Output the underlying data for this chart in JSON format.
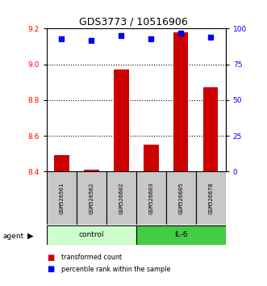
{
  "title": "GDS3773 / 10516906",
  "samples": [
    "GSM526561",
    "GSM526562",
    "GSM526602",
    "GSM526603",
    "GSM526605",
    "GSM526678"
  ],
  "transformed_counts": [
    8.49,
    8.41,
    8.97,
    8.55,
    9.18,
    8.87
  ],
  "percentile_ranks": [
    93,
    92,
    95,
    93,
    97,
    94
  ],
  "ylim_left": [
    8.4,
    9.2
  ],
  "ylim_right": [
    0,
    100
  ],
  "yticks_left": [
    8.4,
    8.6,
    8.8,
    9.0,
    9.2
  ],
  "yticks_right": [
    0,
    25,
    50,
    75,
    100
  ],
  "bar_color": "#cc0000",
  "dot_color": "#0000ee",
  "bar_width": 0.5,
  "bg_color": "#ffffff",
  "sample_bg_color": "#c8c8c8",
  "control_color": "#ccffcc",
  "il6_color": "#44cc44",
  "legend_labels": [
    "transformed count",
    "percentile rank within the sample"
  ],
  "agent_label": "agent"
}
